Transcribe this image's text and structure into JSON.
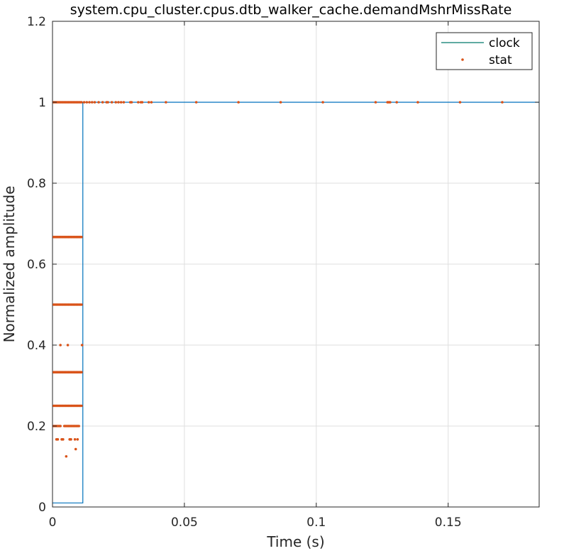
{
  "chart_data": {
    "type": "line",
    "title": "system.cpu_cluster.cpus.dtb_walker_cache.demandMshrMissRate",
    "xlabel": "Time (s)",
    "ylabel": "Normalized amplitude",
    "xlim": [
      0,
      0.1845
    ],
    "ylim": [
      0,
      1.2
    ],
    "x_ticks": [
      0,
      0.05,
      0.1,
      0.15
    ],
    "x_tick_labels": [
      "0",
      "0.05",
      "0.1",
      "0.15"
    ],
    "y_ticks": [
      0,
      0.2,
      0.4,
      0.6,
      0.8,
      1,
      1.2
    ],
    "y_tick_labels": [
      "0",
      "0.2",
      "0.4",
      "0.6",
      "0.8",
      "1",
      "1.2"
    ],
    "grid": true,
    "legend_position": "top-right",
    "series": [
      {
        "name": "clock",
        "kind": "line",
        "color": "#0072bd",
        "legend_color": "#00796b",
        "x": [
          0,
          0.0115,
          0.0115,
          0.1845
        ],
        "y": [
          0.01,
          0.01,
          1,
          1
        ]
      },
      {
        "name": "stat",
        "kind": "points",
        "color": "#d95319",
        "x": [
          0.0005,
          0.001,
          0.0015,
          0.002,
          0.0025,
          0.003,
          0.0035,
          0.004,
          0.0045,
          0.005,
          0.0055,
          0.006,
          0.0065,
          0.007,
          0.0075,
          0.008,
          0.0085,
          0.009,
          0.0095,
          0.01,
          0.0105,
          0.011,
          0.012,
          0.013,
          0.014,
          0.015,
          0.016,
          0.0175,
          0.019,
          0.0205,
          0.021,
          0.0225,
          0.024,
          0.025,
          0.026,
          0.027,
          0.0295,
          0.03,
          0.0325,
          0.0335,
          0.034,
          0.0365,
          0.0375,
          0.043,
          0.0545,
          0.0705,
          0.0865,
          0.1025,
          0.1225,
          0.127,
          0.1275,
          0.128,
          0.1305,
          0.1385,
          0.1545,
          0.1705,
          0.0005,
          0.001,
          0.0015,
          0.002,
          0.0025,
          0.003,
          0.0035,
          0.004,
          0.0045,
          0.005,
          0.0055,
          0.006,
          0.0065,
          0.007,
          0.0075,
          0.008,
          0.0085,
          0.009,
          0.0095,
          0.01,
          0.0105,
          0.011,
          0.0005,
          0.001,
          0.0015,
          0.002,
          0.0025,
          0.003,
          0.0035,
          0.004,
          0.0045,
          0.005,
          0.0055,
          0.006,
          0.0065,
          0.007,
          0.0075,
          0.008,
          0.0085,
          0.009,
          0.0095,
          0.01,
          0.0105,
          0.011,
          0.003,
          0.0058,
          0.0112,
          0.0005,
          0.001,
          0.0015,
          0.002,
          0.0025,
          0.003,
          0.0035,
          0.004,
          0.0045,
          0.005,
          0.0055,
          0.006,
          0.0065,
          0.007,
          0.0075,
          0.008,
          0.0085,
          0.009,
          0.0095,
          0.01,
          0.0105,
          0.011,
          0.0005,
          0.001,
          0.0015,
          0.002,
          0.0025,
          0.003,
          0.0035,
          0.004,
          0.0045,
          0.005,
          0.0055,
          0.006,
          0.0065,
          0.007,
          0.0075,
          0.008,
          0.0085,
          0.009,
          0.0095,
          0.01,
          0.0105,
          0.011,
          0.0005,
          0.001,
          0.0015,
          0.002,
          0.0025,
          0.003,
          0.0045,
          0.005,
          0.0055,
          0.006,
          0.0065,
          0.007,
          0.0075,
          0.008,
          0.0085,
          0.009,
          0.0095,
          0.01,
          0.0015,
          0.002,
          0.0035,
          0.004,
          0.0065,
          0.007,
          0.0085,
          0.0095,
          0.0088,
          0.0052
        ],
        "y": [
          1,
          1,
          1,
          1,
          1,
          1,
          1,
          1,
          1,
          1,
          1,
          1,
          1,
          1,
          1,
          1,
          1,
          1,
          1,
          1,
          1,
          1,
          1,
          1,
          1,
          1,
          1,
          1,
          1,
          1,
          1,
          1,
          1,
          1,
          1,
          1,
          1,
          1,
          1,
          1,
          1,
          1,
          1,
          1,
          1,
          1,
          1,
          1,
          1,
          1,
          1,
          1,
          1,
          1,
          1,
          1,
          0.667,
          0.667,
          0.667,
          0.667,
          0.667,
          0.667,
          0.667,
          0.667,
          0.667,
          0.667,
          0.667,
          0.667,
          0.667,
          0.667,
          0.667,
          0.667,
          0.667,
          0.667,
          0.667,
          0.667,
          0.667,
          0.667,
          0.5,
          0.5,
          0.5,
          0.5,
          0.5,
          0.5,
          0.5,
          0.5,
          0.5,
          0.5,
          0.5,
          0.5,
          0.5,
          0.5,
          0.5,
          0.5,
          0.5,
          0.5,
          0.5,
          0.5,
          0.5,
          0.5,
          0.4,
          0.4,
          0.4,
          0.333,
          0.333,
          0.333,
          0.333,
          0.333,
          0.333,
          0.333,
          0.333,
          0.333,
          0.333,
          0.333,
          0.333,
          0.333,
          0.333,
          0.333,
          0.333,
          0.333,
          0.333,
          0.333,
          0.333,
          0.333,
          0.333,
          0.25,
          0.25,
          0.25,
          0.25,
          0.25,
          0.25,
          0.25,
          0.25,
          0.25,
          0.25,
          0.25,
          0.25,
          0.25,
          0.25,
          0.25,
          0.25,
          0.25,
          0.25,
          0.25,
          0.25,
          0.25,
          0.25,
          0.2,
          0.2,
          0.2,
          0.2,
          0.2,
          0.2,
          0.2,
          0.2,
          0.2,
          0.2,
          0.2,
          0.2,
          0.2,
          0.2,
          0.2,
          0.2,
          0.2,
          0.2,
          0.167,
          0.167,
          0.167,
          0.167,
          0.167,
          0.167,
          0.167,
          0.167,
          0.143,
          0.125
        ]
      }
    ]
  }
}
